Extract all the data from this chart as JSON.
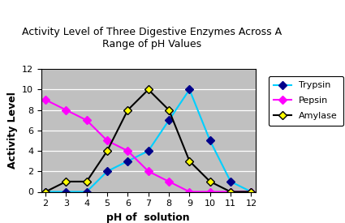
{
  "title": "Activity Level of Three Digestive Enzymes Across A\nRange of pH Values",
  "xlabel": "pH of  solution",
  "ylabel": "Activity Level",
  "xlim": [
    2,
    12
  ],
  "ylim": [
    0,
    12
  ],
  "xticks": [
    2,
    3,
    4,
    5,
    6,
    7,
    8,
    9,
    10,
    11,
    12
  ],
  "yticks": [
    0,
    2,
    4,
    6,
    8,
    10,
    12
  ],
  "plot_bg_color": "#c0c0c0",
  "fig_bg_color": "#ffffff",
  "trypsin": {
    "x": [
      2,
      3,
      4,
      5,
      6,
      7,
      8,
      9,
      10,
      11,
      12
    ],
    "y": [
      0,
      0,
      0,
      2,
      3,
      4,
      7,
      10,
      5,
      1,
      0
    ],
    "line_color": "#00cfff",
    "marker_facecolor": "#00008b",
    "label": "Trypsin"
  },
  "pepsin": {
    "x": [
      2,
      3,
      4,
      5,
      6,
      7,
      8,
      9,
      10,
      11,
      12
    ],
    "y": [
      9,
      8,
      7,
      5,
      4,
      2,
      1,
      0,
      0,
      0,
      0
    ],
    "line_color": "#ff00ff",
    "marker_facecolor": "#ff00ff",
    "label": "Pepsin"
  },
  "amylase": {
    "x": [
      2,
      3,
      4,
      5,
      6,
      7,
      8,
      9,
      10,
      11,
      12
    ],
    "y": [
      0,
      1,
      1,
      4,
      8,
      10,
      8,
      3,
      1,
      0,
      0
    ],
    "line_color": "#000000",
    "marker_facecolor": "#ffff00",
    "label": "Amylase"
  },
  "title_fontsize": 9,
  "axis_label_fontsize": 9,
  "tick_fontsize": 8,
  "legend_fontsize": 8,
  "linewidth": 1.5,
  "markersize": 5
}
